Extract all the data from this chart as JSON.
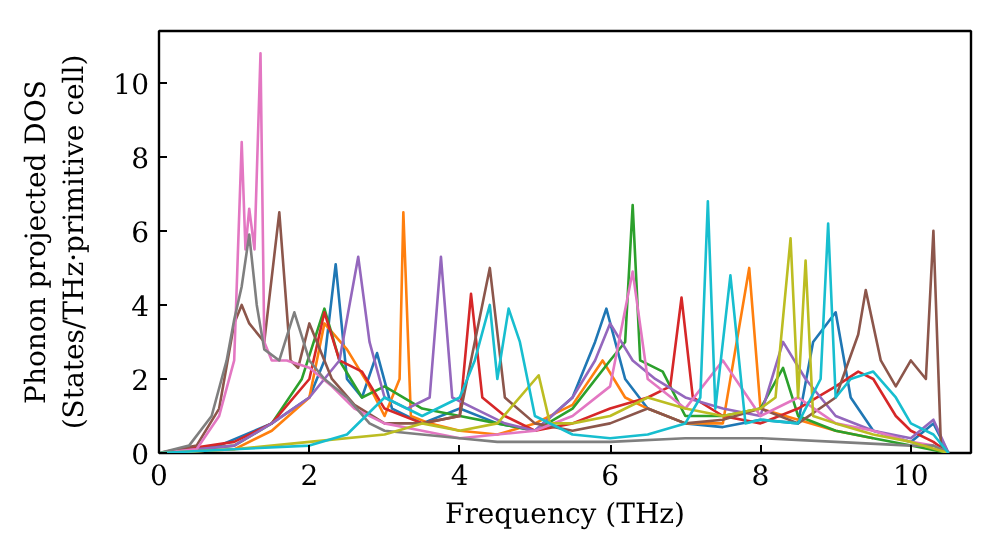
{
  "chart_data": {
    "type": "line",
    "xlabel": "Frequency (THz)",
    "ylabel": "Phonon projected DOS\n(States/THz·primitive cell)",
    "xlim": [
      0,
      10.8
    ],
    "ylim": [
      0,
      11.4
    ],
    "xticks": [
      0,
      2,
      4,
      6,
      8,
      10
    ],
    "yticks": [
      0,
      2,
      4,
      6,
      8,
      10
    ],
    "series": [
      {
        "color": "#1f77b4",
        "x": [
          0,
          0.8,
          1.5,
          2.0,
          2.2,
          2.35,
          2.5,
          2.7,
          2.9,
          3.1,
          3.5,
          4.0,
          4.5,
          5.0,
          5.5,
          5.8,
          5.95,
          6.2,
          6.5,
          7.0,
          7.5,
          8.0,
          8.5,
          8.7,
          9.0,
          9.2,
          9.5,
          10.0,
          10.3,
          10.5
        ],
        "values": [
          0,
          0.2,
          0.8,
          1.5,
          2.5,
          5.1,
          2.0,
          1.5,
          2.7,
          1.2,
          0.8,
          1.2,
          0.8,
          0.6,
          1.5,
          3.0,
          3.9,
          2.0,
          1.2,
          0.8,
          0.7,
          0.9,
          0.8,
          3.0,
          3.8,
          1.5,
          0.6,
          0.3,
          0.8,
          0
        ]
      },
      {
        "color": "#ff7f0e",
        "x": [
          0,
          1,
          1.5,
          2.0,
          2.2,
          2.5,
          2.8,
          3.0,
          3.2,
          3.25,
          3.35,
          3.6,
          4.0,
          4.5,
          5,
          5.5,
          5.9,
          6.2,
          6.5,
          7.0,
          7.5,
          7.85,
          8.0,
          8.5,
          9,
          9.5
        ],
        "values": [
          0,
          0.1,
          0.6,
          1.5,
          3.5,
          2.8,
          1.8,
          1.0,
          2.0,
          6.5,
          1.0,
          0.8,
          0.6,
          0.5,
          0.8,
          1.3,
          2.5,
          1.5,
          1.2,
          0.8,
          0.8,
          5.0,
          1.2,
          0.9,
          0.6,
          0.4
        ]
      },
      {
        "color": "#2ca02c",
        "x": [
          0,
          1,
          1.5,
          1.9,
          2.2,
          2.4,
          2.7,
          3.0,
          3.5,
          4.0,
          4.5,
          5,
          5.5,
          6.0,
          6.2,
          6.3,
          6.4,
          6.7,
          7.0,
          7.5,
          8.0,
          8.3,
          8.5,
          9,
          9.5,
          10,
          10.5
        ],
        "values": [
          0,
          0.2,
          0.8,
          2.0,
          3.9,
          2.5,
          1.5,
          1.8,
          1.2,
          1.0,
          0.8,
          0.6,
          1.2,
          2.5,
          3.0,
          6.7,
          2.5,
          2.2,
          1.0,
          1.0,
          1.2,
          2.3,
          1.0,
          0.6,
          0.4,
          0.2,
          0
        ]
      },
      {
        "color": "#d62728",
        "x": [
          0,
          1,
          1.5,
          2.0,
          2.2,
          2.4,
          2.7,
          3.0,
          3.5,
          4.0,
          4.15,
          4.3,
          4.6,
          5,
          5.5,
          6,
          6.5,
          6.8,
          6.95,
          7.1,
          7.5,
          8.0,
          8.5,
          9.0,
          9.3,
          9.5,
          9.8,
          10.0,
          10.3,
          10.5
        ],
        "values": [
          0,
          0.3,
          0.8,
          2.0,
          3.8,
          2.5,
          2.2,
          1.2,
          0.8,
          1.0,
          4.3,
          1.5,
          1.0,
          0.6,
          0.8,
          1.2,
          1.5,
          1.8,
          4.2,
          1.5,
          1.0,
          0.8,
          1.2,
          1.8,
          2.2,
          2.0,
          1.0,
          0.6,
          0.3,
          0
        ]
      },
      {
        "color": "#9467bd",
        "x": [
          0,
          1,
          1.5,
          2.0,
          2.4,
          2.65,
          2.8,
          3.0,
          3.3,
          3.6,
          3.75,
          3.9,
          4.2,
          4.6,
          5.0,
          5.5,
          5.8,
          6.0,
          6.3,
          6.6,
          7.0,
          7.5,
          8.0,
          8.3,
          8.6,
          9.0,
          9.5,
          10,
          10.3,
          10.5
        ],
        "values": [
          0,
          0.2,
          0.8,
          1.5,
          2.5,
          5.3,
          3.0,
          1.5,
          1.2,
          1.5,
          5.3,
          1.5,
          1.2,
          0.8,
          0.6,
          1.5,
          2.5,
          3.5,
          2.5,
          2.0,
          1.5,
          1.2,
          1.0,
          3.0,
          2.0,
          1.0,
          0.6,
          0.4,
          0.9,
          0
        ]
      },
      {
        "color": "#8c564b",
        "x": [
          0,
          0.5,
          0.8,
          1.0,
          1.1,
          1.2,
          1.4,
          1.6,
          1.75,
          1.85,
          2.0,
          2.3,
          2.6,
          3.0,
          3.5,
          4.0,
          4.4,
          4.6,
          5.0,
          5.5,
          6,
          6.5,
          7,
          7.5,
          8,
          8.5,
          9.0,
          9.3,
          9.4,
          9.6,
          9.8,
          10.0,
          10.2,
          10.3,
          10.4,
          10.5
        ],
        "values": [
          0,
          0.2,
          1.2,
          3.5,
          4.0,
          3.5,
          3.0,
          6.5,
          2.5,
          2.3,
          3.5,
          2.0,
          1.3,
          0.8,
          0.8,
          1.0,
          5.0,
          1.5,
          0.8,
          0.6,
          0.8,
          1.2,
          0.8,
          0.9,
          1.2,
          0.8,
          1.5,
          3.2,
          4.4,
          2.5,
          1.8,
          2.5,
          2.0,
          6.0,
          0.2,
          0
        ]
      },
      {
        "color": "#e377c2",
        "x": [
          0,
          0.5,
          0.8,
          1.0,
          1.1,
          1.15,
          1.2,
          1.27,
          1.35,
          1.4,
          1.5,
          1.7,
          2.0,
          2.3,
          2.6,
          3.0,
          3.5,
          4.0,
          4.5,
          5.0,
          5.5,
          6.0,
          6.3,
          6.5,
          7.0,
          7.5,
          8.0,
          8.5,
          9.0,
          9.5,
          10.0,
          10.3,
          10.5
        ],
        "values": [
          0,
          0.1,
          1.0,
          2.5,
          8.4,
          5.5,
          6.6,
          5.5,
          10.8,
          3.0,
          2.5,
          2.5,
          2.3,
          1.8,
          1.2,
          0.8,
          0.6,
          0.4,
          0.5,
          0.6,
          1.0,
          1.8,
          4.9,
          2.0,
          1.2,
          2.5,
          1.0,
          1.5,
          0.8,
          0.6,
          0.3,
          0.2,
          0
        ]
      },
      {
        "color": "#7f7f7f",
        "x": [
          0,
          0.4,
          0.7,
          0.9,
          1.0,
          1.1,
          1.2,
          1.3,
          1.4,
          1.6,
          1.8,
          2.0,
          2.2,
          2.5,
          2.8,
          3.0,
          3.5,
          4.0,
          4.5,
          5,
          6,
          7,
          8,
          9,
          10,
          10.3,
          10.5
        ],
        "values": [
          0,
          0.2,
          1.0,
          2.5,
          3.6,
          4.5,
          5.9,
          4.0,
          2.8,
          2.5,
          3.8,
          2.5,
          2.0,
          1.5,
          0.8,
          0.6,
          0.5,
          0.4,
          0.3,
          0.3,
          0.3,
          0.4,
          0.4,
          0.3,
          0.2,
          0.2,
          0
        ]
      },
      {
        "color": "#bcbd22",
        "x": [
          0,
          1,
          2,
          3,
          3.5,
          4,
          4.5,
          5.05,
          5.2,
          5.5,
          6,
          6.5,
          7,
          7.5,
          8,
          8.2,
          8.4,
          8.5,
          8.6,
          8.7,
          9,
          9.5,
          10,
          10.5
        ],
        "values": [
          0,
          0.1,
          0.3,
          0.5,
          0.8,
          0.6,
          0.8,
          2.1,
          0.8,
          0.8,
          1.0,
          1.5,
          1.2,
          1.0,
          1.2,
          1.5,
          5.8,
          1.5,
          5.2,
          1.0,
          0.8,
          0.5,
          0.3,
          0
        ]
      },
      {
        "color": "#17becf",
        "x": [
          0,
          1,
          2,
          2.5,
          3,
          3.5,
          4.0,
          4.2,
          4.4,
          4.5,
          4.65,
          4.8,
          5.0,
          5.5,
          6,
          6.5,
          7.0,
          7.2,
          7.3,
          7.4,
          7.6,
          7.8,
          8,
          8.5,
          8.8,
          8.9,
          9.0,
          9.2,
          9.5,
          9.8,
          10,
          10.3,
          10.5
        ],
        "values": [
          0,
          0.1,
          0.2,
          0.5,
          1.5,
          1.0,
          1.5,
          2.5,
          4.0,
          2.0,
          3.9,
          3.0,
          1.0,
          0.5,
          0.4,
          0.5,
          0.8,
          1.5,
          6.8,
          1.2,
          4.8,
          0.8,
          0.9,
          0.8,
          2.0,
          6.2,
          1.5,
          2.0,
          2.2,
          1.5,
          0.8,
          0.5,
          0
        ]
      }
    ]
  }
}
